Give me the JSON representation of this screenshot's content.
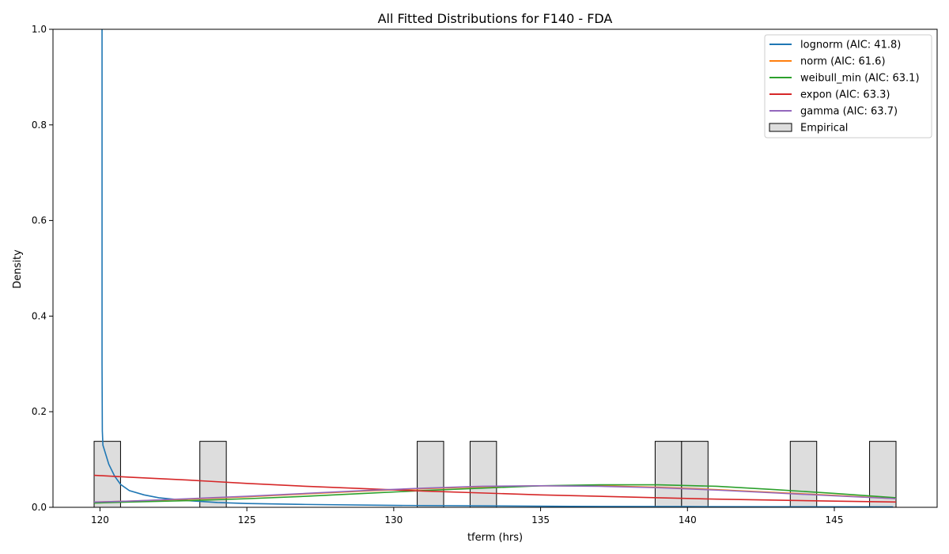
{
  "chart_data": {
    "type": "histogram+line",
    "title": "All Fitted Distributions for F140 - FDA",
    "xlabel": "tferm (hrs)",
    "ylabel": "Density",
    "xlim": [
      118.4,
      148.5
    ],
    "ylim": [
      0,
      1.0
    ],
    "x_ticks": [
      120,
      125,
      130,
      135,
      140,
      145
    ],
    "y_ticks": [
      0.0,
      0.2,
      0.4,
      0.6,
      0.8,
      1.0
    ],
    "grid": false,
    "legend_position": "top-right",
    "histogram": {
      "name": "Empirical",
      "color": "#dddddd",
      "edge_color": "#000000",
      "bins": [
        {
          "x0": 119.8,
          "x1": 120.7,
          "density": 0.138
        },
        {
          "x0": 123.4,
          "x1": 124.3,
          "density": 0.138
        },
        {
          "x0": 130.8,
          "x1": 131.7,
          "density": 0.138
        },
        {
          "x0": 132.6,
          "x1": 133.5,
          "density": 0.138
        },
        {
          "x0": 138.9,
          "x1": 139.8,
          "density": 0.138
        },
        {
          "x0": 139.8,
          "x1": 140.7,
          "density": 0.138
        },
        {
          "x0": 143.5,
          "x1": 144.4,
          "density": 0.138
        },
        {
          "x0": 146.2,
          "x1": 147.1,
          "density": 0.138
        }
      ]
    },
    "series": [
      {
        "name": "lognorm (AIC: 41.8)",
        "color": "#1f77b4",
        "x": [
          120.07,
          120.07,
          120.07,
          120.08,
          120.1,
          120.15,
          120.3,
          120.5,
          120.7,
          121.0,
          121.5,
          122.0,
          123.0,
          124.0,
          125.0,
          127.0,
          130.0,
          133.0,
          136.0,
          140.0,
          143.0,
          147.0
        ],
        "y": [
          1.0,
          0.6,
          0.3,
          0.16,
          0.13,
          0.12,
          0.09,
          0.065,
          0.048,
          0.035,
          0.026,
          0.02,
          0.014,
          0.01,
          0.008,
          0.006,
          0.004,
          0.003,
          0.002,
          0.0015,
          0.0012,
          0.001
        ]
      },
      {
        "name": "norm (AIC: 61.6)",
        "color": "#ff7f0e",
        "x": [
          119.8,
          121.0,
          123.0,
          125.0,
          127.0,
          129.0,
          131.0,
          133.0,
          135.0,
          137.0,
          139.0,
          141.0,
          143.0,
          145.0,
          147.1
        ],
        "y": [
          0.011,
          0.013,
          0.017,
          0.022,
          0.028,
          0.034,
          0.039,
          0.043,
          0.045,
          0.045,
          0.042,
          0.037,
          0.031,
          0.025,
          0.018
        ]
      },
      {
        "name": "weibull_min (AIC: 63.1)",
        "color": "#2ca02c",
        "x": [
          119.8,
          121.0,
          123.0,
          125.0,
          127.0,
          129.0,
          131.0,
          133.0,
          135.0,
          137.0,
          139.0,
          141.0,
          143.0,
          145.0,
          147.1
        ],
        "y": [
          0.009,
          0.011,
          0.014,
          0.018,
          0.023,
          0.029,
          0.035,
          0.04,
          0.045,
          0.047,
          0.047,
          0.044,
          0.037,
          0.029,
          0.02
        ]
      },
      {
        "name": "expon (AIC: 63.3)",
        "color": "#d62728",
        "x": [
          119.8,
          121.0,
          123.0,
          125.0,
          127.0,
          129.0,
          131.0,
          133.0,
          135.0,
          137.0,
          139.0,
          141.0,
          143.0,
          145.0,
          147.1
        ],
        "y": [
          0.067,
          0.063,
          0.057,
          0.05,
          0.044,
          0.039,
          0.034,
          0.03,
          0.026,
          0.023,
          0.02,
          0.017,
          0.015,
          0.013,
          0.011
        ]
      },
      {
        "name": "gamma (AIC: 63.7)",
        "color": "#9467bd",
        "x": [
          119.8,
          121.0,
          123.0,
          125.0,
          127.0,
          129.0,
          131.0,
          133.0,
          135.0,
          137.0,
          139.0,
          141.0,
          143.0,
          145.0,
          147.1
        ],
        "y": [
          0.011,
          0.013,
          0.018,
          0.023,
          0.029,
          0.035,
          0.04,
          0.044,
          0.045,
          0.044,
          0.041,
          0.036,
          0.03,
          0.024,
          0.018
        ]
      }
    ]
  }
}
